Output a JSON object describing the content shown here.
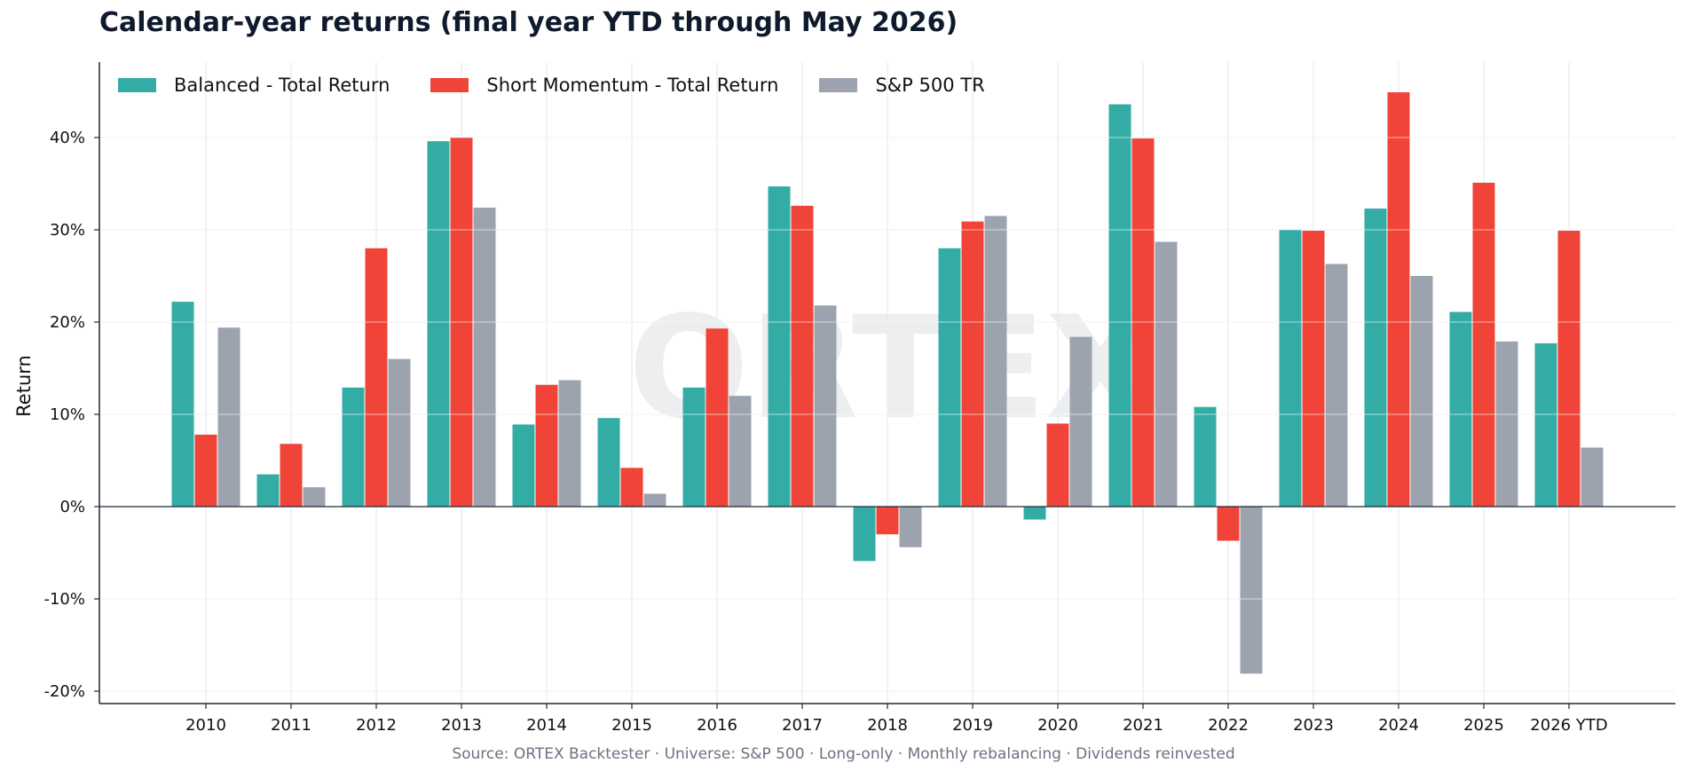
{
  "chart_data": {
    "type": "bar",
    "title": "Calendar-year returns (final year YTD through May 2026)",
    "ylabel": "Return",
    "xlabel": "",
    "source": "Source: ORTEX Backtester · Universe: S&P 500 · Long-only · Monthly rebalancing · Dividends reinvested",
    "watermark": "ORTEX",
    "categories": [
      "2010",
      "2011",
      "2012",
      "2013",
      "2014",
      "2015",
      "2016",
      "2017",
      "2018",
      "2019",
      "2020",
      "2021",
      "2022",
      "2023",
      "2024",
      "2025",
      "2026 YTD"
    ],
    "yticks": [
      -20,
      -10,
      0,
      10,
      20,
      30,
      40
    ],
    "ytick_labels": [
      "-20%",
      "-10%",
      "0%",
      "10%",
      "20%",
      "30%",
      "40%"
    ],
    "ylim": [
      -21.2,
      48.2
    ],
    "grid": true,
    "legend_position": "top-left",
    "series": [
      {
        "name": "Balanced - Total Return",
        "color": "#33aca6",
        "values": [
          22.2,
          3.5,
          12.9,
          39.6,
          8.9,
          9.6,
          12.9,
          34.7,
          -5.9,
          28.0,
          -1.4,
          43.6,
          10.8,
          30.0,
          32.3,
          21.1,
          17.7
        ]
      },
      {
        "name": "Short Momentum - Total Return",
        "color": "#ef4437",
        "values": [
          7.8,
          6.8,
          28.0,
          40.0,
          13.2,
          4.2,
          19.3,
          32.6,
          -3.0,
          30.9,
          9.0,
          39.9,
          -3.7,
          29.9,
          44.9,
          35.1,
          29.9
        ]
      },
      {
        "name": "S&P 500 TR",
        "color": "#9ca3af",
        "values": [
          19.4,
          2.1,
          16.0,
          32.4,
          13.7,
          1.4,
          12.0,
          21.8,
          -4.4,
          31.5,
          18.4,
          28.7,
          -18.1,
          26.3,
          25.0,
          17.9,
          6.4
        ]
      }
    ]
  }
}
